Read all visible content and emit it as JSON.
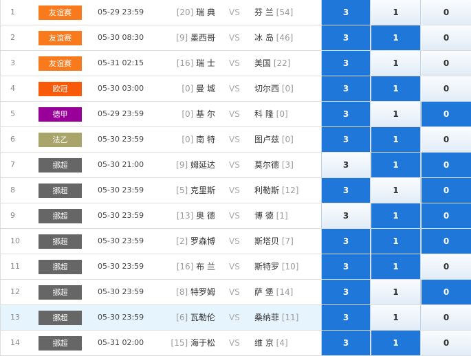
{
  "colors": {
    "selected": "#1f78d9",
    "youyi": "#f97a1c",
    "ouguan": "#f95a0a",
    "dejia": "#990099",
    "fayi": "#a8a46a",
    "nuochao": "#666666"
  },
  "rows": [
    {
      "idx": "1",
      "league": "友谊赛",
      "color": "#f97a1c",
      "date": "05-29 23:59",
      "home_rank": "[20]",
      "home": "瑞 典",
      "vs": "VS",
      "away": "芬 兰",
      "away_rank": "[54]",
      "odds": [
        "3",
        "1",
        "0"
      ],
      "selected": [
        true,
        false,
        false
      ]
    },
    {
      "idx": "2",
      "league": "友谊赛",
      "color": "#f97a1c",
      "date": "05-30 08:30",
      "home_rank": "[9]",
      "home": "墨西哥",
      "vs": "VS",
      "away": "冰 岛",
      "away_rank": "[46]",
      "odds": [
        "3",
        "1",
        "0"
      ],
      "selected": [
        true,
        true,
        false
      ]
    },
    {
      "idx": "3",
      "league": "友谊赛",
      "color": "#f97a1c",
      "date": "05-31 02:15",
      "home_rank": "[16]",
      "home": "瑞 士",
      "vs": "VS",
      "away": "美国",
      "away_rank": "[22]",
      "odds": [
        "3",
        "1",
        "0"
      ],
      "selected": [
        true,
        false,
        false
      ]
    },
    {
      "idx": "4",
      "league": "欧冠",
      "color": "#f95a0a",
      "date": "05-30 03:00",
      "home_rank": "[0]",
      "home": "曼 城",
      "vs": "VS",
      "away": "切尔西",
      "away_rank": "[0]",
      "odds": [
        "3",
        "1",
        "0"
      ],
      "selected": [
        true,
        true,
        false
      ]
    },
    {
      "idx": "5",
      "league": "德甲",
      "color": "#990099",
      "date": "05-29 23:59",
      "home_rank": "[0]",
      "home": "基 尔",
      "vs": "VS",
      "away": "科 隆",
      "away_rank": "[0]",
      "odds": [
        "3",
        "1",
        "0"
      ],
      "selected": [
        true,
        false,
        true
      ]
    },
    {
      "idx": "6",
      "league": "法乙",
      "color": "#a8a46a",
      "date": "05-30 23:59",
      "home_rank": "[0]",
      "home": "南 特",
      "vs": "VS",
      "away": "图卢兹",
      "away_rank": "[0]",
      "odds": [
        "3",
        "1",
        "0"
      ],
      "selected": [
        true,
        true,
        false
      ]
    },
    {
      "idx": "7",
      "league": "挪超",
      "color": "#666666",
      "date": "05-30 21:00",
      "home_rank": "[9]",
      "home": "姆延达",
      "vs": "VS",
      "away": "莫尔德",
      "away_rank": "[3]",
      "odds": [
        "3",
        "1",
        "0"
      ],
      "selected": [
        false,
        true,
        true
      ]
    },
    {
      "idx": "8",
      "league": "挪超",
      "color": "#666666",
      "date": "05-30 23:59",
      "home_rank": "[5]",
      "home": "克里斯",
      "vs": "VS",
      "away": "利勒斯",
      "away_rank": "[12]",
      "odds": [
        "3",
        "1",
        "0"
      ],
      "selected": [
        true,
        false,
        true
      ]
    },
    {
      "idx": "9",
      "league": "挪超",
      "color": "#666666",
      "date": "05-30 23:59",
      "home_rank": "[13]",
      "home": "奥 德",
      "vs": "VS",
      "away": "博 德",
      "away_rank": "[1]",
      "odds": [
        "3",
        "1",
        "0"
      ],
      "selected": [
        false,
        true,
        true
      ]
    },
    {
      "idx": "10",
      "league": "挪超",
      "color": "#666666",
      "date": "05-30 23:59",
      "home_rank": "[2]",
      "home": "罗森博",
      "vs": "VS",
      "away": "斯塔贝",
      "away_rank": "[7]",
      "odds": [
        "3",
        "1",
        "0"
      ],
      "selected": [
        true,
        true,
        true
      ]
    },
    {
      "idx": "11",
      "league": "挪超",
      "color": "#666666",
      "date": "05-30 23:59",
      "home_rank": "[16]",
      "home": "布 兰",
      "vs": "VS",
      "away": "斯特罗",
      "away_rank": "[10]",
      "odds": [
        "3",
        "1",
        "0"
      ],
      "selected": [
        true,
        true,
        false
      ]
    },
    {
      "idx": "12",
      "league": "挪超",
      "color": "#666666",
      "date": "05-30 23:59",
      "home_rank": "[8]",
      "home": "特罗姆",
      "vs": "VS",
      "away": "萨 堡",
      "away_rank": "[14]",
      "odds": [
        "3",
        "1",
        "0"
      ],
      "selected": [
        true,
        false,
        true
      ]
    },
    {
      "idx": "13",
      "league": "挪超",
      "color": "#666666",
      "date": "05-30 23:59",
      "home_rank": "[6]",
      "home": "瓦勒伦",
      "vs": "VS",
      "away": "桑纳菲",
      "away_rank": "[11]",
      "odds": [
        "3",
        "1",
        "0"
      ],
      "selected": [
        true,
        false,
        false
      ],
      "highlighted": true
    },
    {
      "idx": "14",
      "league": "挪超",
      "color": "#666666",
      "date": "05-31 02:00",
      "home_rank": "[15]",
      "home": "海于松",
      "vs": "VS",
      "away": "维 京",
      "away_rank": "[4]",
      "odds": [
        "3",
        "1",
        "0"
      ],
      "selected": [
        true,
        true,
        false
      ]
    }
  ]
}
